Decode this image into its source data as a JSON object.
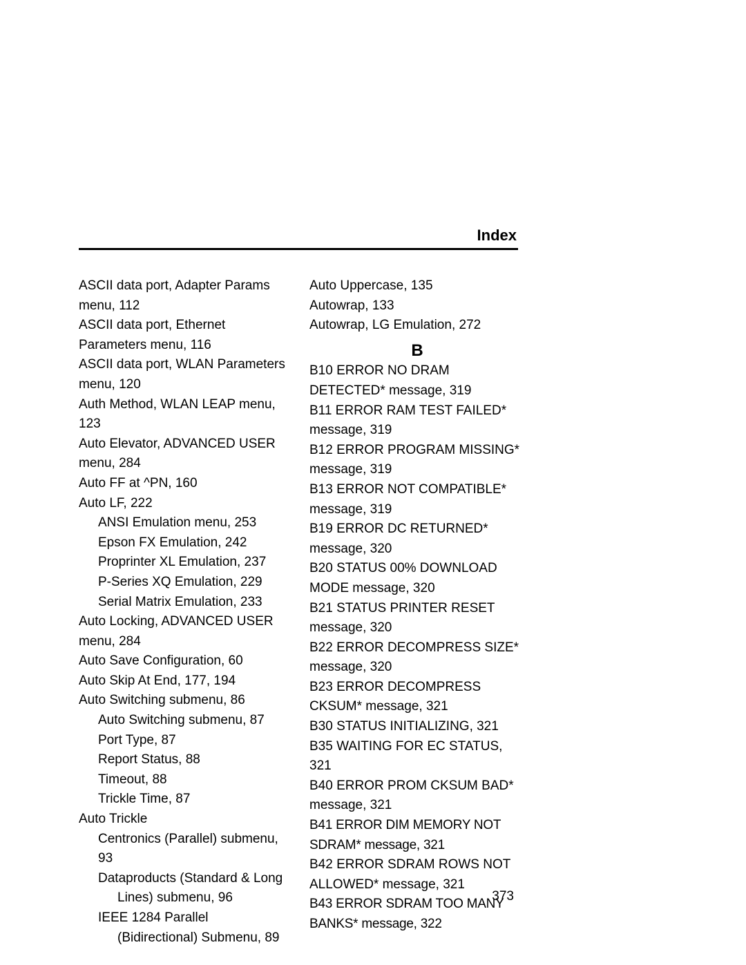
{
  "header": {
    "title": "Index"
  },
  "pagenum": "373",
  "left": [
    {
      "t": "ASCII data port, Adapter Params menu, 112",
      "i": 0
    },
    {
      "t": "ASCII data port, Ethernet Parameters menu, 116",
      "i": 0
    },
    {
      "t": "ASCII data port, WLAN Parameters menu, 120",
      "i": 0
    },
    {
      "t": "Auth Method, WLAN LEAP menu, 123",
      "i": 0
    },
    {
      "t": "Auto Elevator, ADVANCED USER menu, 284",
      "i": 0
    },
    {
      "t": "Auto FF at ^PN, 160",
      "i": 0
    },
    {
      "t": "Auto LF, 222",
      "i": 0
    },
    {
      "t": "ANSI Emulation menu, 253",
      "i": 1
    },
    {
      "t": "Epson FX Emulation, 242",
      "i": 1
    },
    {
      "t": "Proprinter XL Emulation, 237",
      "i": 1
    },
    {
      "t": "P-Series XQ Emulation, 229",
      "i": 1
    },
    {
      "t": "Serial Matrix Emulation, 233",
      "i": 1
    },
    {
      "t": "Auto Locking, ADVANCED USER menu, 284",
      "i": 0
    },
    {
      "t": "Auto Save Configuration, 60",
      "i": 0
    },
    {
      "t": "Auto Skip At End, 177, 194",
      "i": 0
    },
    {
      "t": "Auto Switching submenu, 86",
      "i": 0
    },
    {
      "t": "Auto Switching submenu, 87",
      "i": 1
    },
    {
      "t": "Port Type, 87",
      "i": 1
    },
    {
      "t": "Report Status, 88",
      "i": 1
    },
    {
      "t": "Timeout, 88",
      "i": 1
    },
    {
      "t": "Trickle Time, 87",
      "i": 1
    },
    {
      "t": "Auto Trickle",
      "i": 0
    },
    {
      "t": "Centronics (Parallel) submenu, 93",
      "i": 1
    },
    {
      "t": "Dataproducts (Standard & Long Lines) submenu, 96",
      "i": 1,
      "hang": true
    },
    {
      "t": "IEEE 1284 Parallel (Bidirectional) Submenu, 89",
      "i": 1,
      "hang": true
    }
  ],
  "rightTop": [
    {
      "t": "Auto Uppercase, 135",
      "i": 0
    },
    {
      "t": "Autowrap, 133",
      "i": 0
    },
    {
      "t": "Autowrap, LG Emulation, 272",
      "i": 0
    }
  ],
  "sectionLetter": "B",
  "rightB": [
    {
      "t": "B10 ERROR NO DRAM DETECTED* message, 319",
      "i": 0
    },
    {
      "t": "B11 ERROR RAM TEST FAILED* message, 319",
      "i": 0
    },
    {
      "t": "B12 ERROR PROGRAM MISSING* message, 319",
      "i": 0
    },
    {
      "t": "B13 ERROR NOT COMPATIBLE* message, 319",
      "i": 0
    },
    {
      "t": "B19 ERROR DC RETURNED* message, 320",
      "i": 0
    },
    {
      "t": "B20 STATUS 00% DOWNLOAD MODE message, 320",
      "i": 0
    },
    {
      "t": "B21 STATUS PRINTER RESET message, 320",
      "i": 0
    },
    {
      "t": "B22 ERROR DECOMPRESS SIZE* message, 320",
      "i": 0
    },
    {
      "t": "B23 ERROR DECOMPRESS CKSUM* message, 321",
      "i": 0
    },
    {
      "t": "B30 STATUS INITIALIZING, 321",
      "i": 0
    },
    {
      "t": "B35 WAITING FOR EC STATUS, 321",
      "i": 0
    },
    {
      "t": "B40 ERROR PROM CKSUM BAD* message, 321",
      "i": 0
    },
    {
      "t": "B41 ERROR DIM MEMORY NOT SDRAM* message, 321",
      "i": 0,
      "tight": true
    },
    {
      "t": "B42 ERROR SDRAM ROWS NOT ALLOWED* message, 321",
      "i": 0
    },
    {
      "t": "B43 ERROR SDRAM TOO MANY BANKS* message, 322",
      "i": 0,
      "tight": true
    }
  ]
}
